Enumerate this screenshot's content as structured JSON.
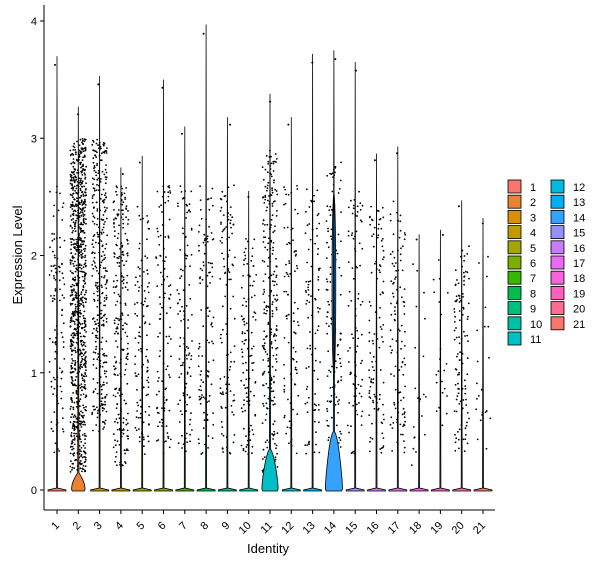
{
  "chart_data": {
    "type": "violin",
    "xlabel": "Identity",
    "ylabel": "Expression Level",
    "ylim": [
      -0.2,
      4.05
    ],
    "yticks": [
      0,
      1,
      2,
      3,
      4
    ],
    "categories": [
      "1",
      "2",
      "3",
      "4",
      "5",
      "6",
      "7",
      "8",
      "9",
      "10",
      "11",
      "12",
      "13",
      "14",
      "15",
      "16",
      "17",
      "18",
      "19",
      "20",
      "21"
    ],
    "max_expression": [
      3.7,
      3.27,
      3.53,
      2.75,
      2.85,
      3.5,
      3.1,
      3.97,
      3.18,
      2.55,
      3.38,
      3.18,
      3.72,
      3.75,
      3.65,
      2.87,
      2.93,
      2.18,
      2.22,
      2.47,
      2.32
    ],
    "main_violin_peak_width": {
      "2": 0.75,
      "11": 0.9,
      "14": 0.95
    },
    "series": [
      {
        "name": "1",
        "color": "#F8766D"
      },
      {
        "name": "2",
        "color": "#EA8331"
      },
      {
        "name": "3",
        "color": "#D89000"
      },
      {
        "name": "4",
        "color": "#C09B00"
      },
      {
        "name": "5",
        "color": "#A3A500"
      },
      {
        "name": "6",
        "color": "#7CAE00"
      },
      {
        "name": "7",
        "color": "#39B600"
      },
      {
        "name": "8",
        "color": "#00BB4E"
      },
      {
        "name": "9",
        "color": "#00BF7D"
      },
      {
        "name": "10",
        "color": "#00C1A3"
      },
      {
        "name": "11",
        "color": "#00BFC4"
      },
      {
        "name": "12",
        "color": "#00BAE0"
      },
      {
        "name": "13",
        "color": "#00B0F6"
      },
      {
        "name": "14",
        "color": "#35A2FF"
      },
      {
        "name": "15",
        "color": "#9590FF"
      },
      {
        "name": "16",
        "color": "#C77CFF"
      },
      {
        "name": "17",
        "color": "#E76BF3"
      },
      {
        "name": "18",
        "color": "#FA62DB"
      },
      {
        "name": "19",
        "color": "#FF62BC"
      },
      {
        "name": "20",
        "color": "#FF6C91"
      },
      {
        "name": "21",
        "color": "#F8766D"
      }
    ],
    "legend_position": "right",
    "grid": false
  }
}
